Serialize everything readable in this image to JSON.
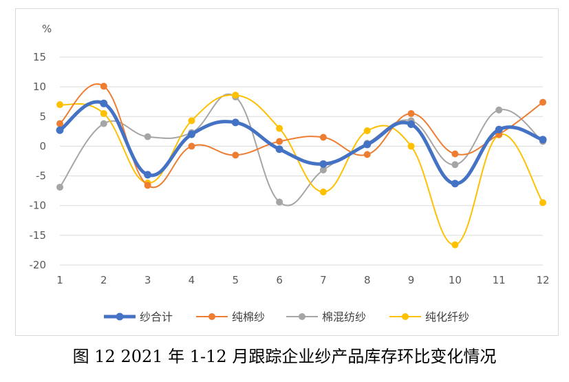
{
  "caption": "图 12   2021 年 1-12 月跟踪企业纱产品库存环比变化情况",
  "chart_data": {
    "type": "line",
    "smooth": true,
    "unit_label": "%",
    "categories": [
      "1",
      "2",
      "3",
      "4",
      "5",
      "6",
      "7",
      "8",
      "9",
      "10",
      "11",
      "12"
    ],
    "ylim": [
      -20,
      15
    ],
    "yticks": [
      15,
      10,
      5,
      0,
      -5,
      -10,
      -15,
      -20
    ],
    "grid": true,
    "legend_position": "bottom",
    "series": [
      {
        "name": "纱合计",
        "color": "#4472C4",
        "values": [
          2.7,
          7.2,
          -4.8,
          2.0,
          4.0,
          -0.5,
          -3.0,
          0.3,
          3.7,
          -6.3,
          2.8,
          1.1
        ]
      },
      {
        "name": "纯棉纱",
        "color": "#ED7D31",
        "values": [
          3.8,
          10.1,
          -6.6,
          0.0,
          -1.5,
          0.8,
          1.5,
          -1.4,
          5.5,
          -1.3,
          2.0,
          7.4
        ]
      },
      {
        "name": "棉混纺纱",
        "color": "#A5A5A5",
        "values": [
          -6.9,
          3.8,
          1.6,
          2.3,
          8.3,
          -9.4,
          -4.0,
          0.5,
          4.3,
          -3.1,
          6.1,
          0.8
        ]
      },
      {
        "name": "纯化纤纱",
        "color": "#FFC000",
        "values": [
          7.0,
          5.5,
          -6.2,
          4.3,
          8.6,
          3.0,
          -7.7,
          2.6,
          0.0,
          -16.6,
          1.9,
          -9.5
        ]
      }
    ]
  }
}
